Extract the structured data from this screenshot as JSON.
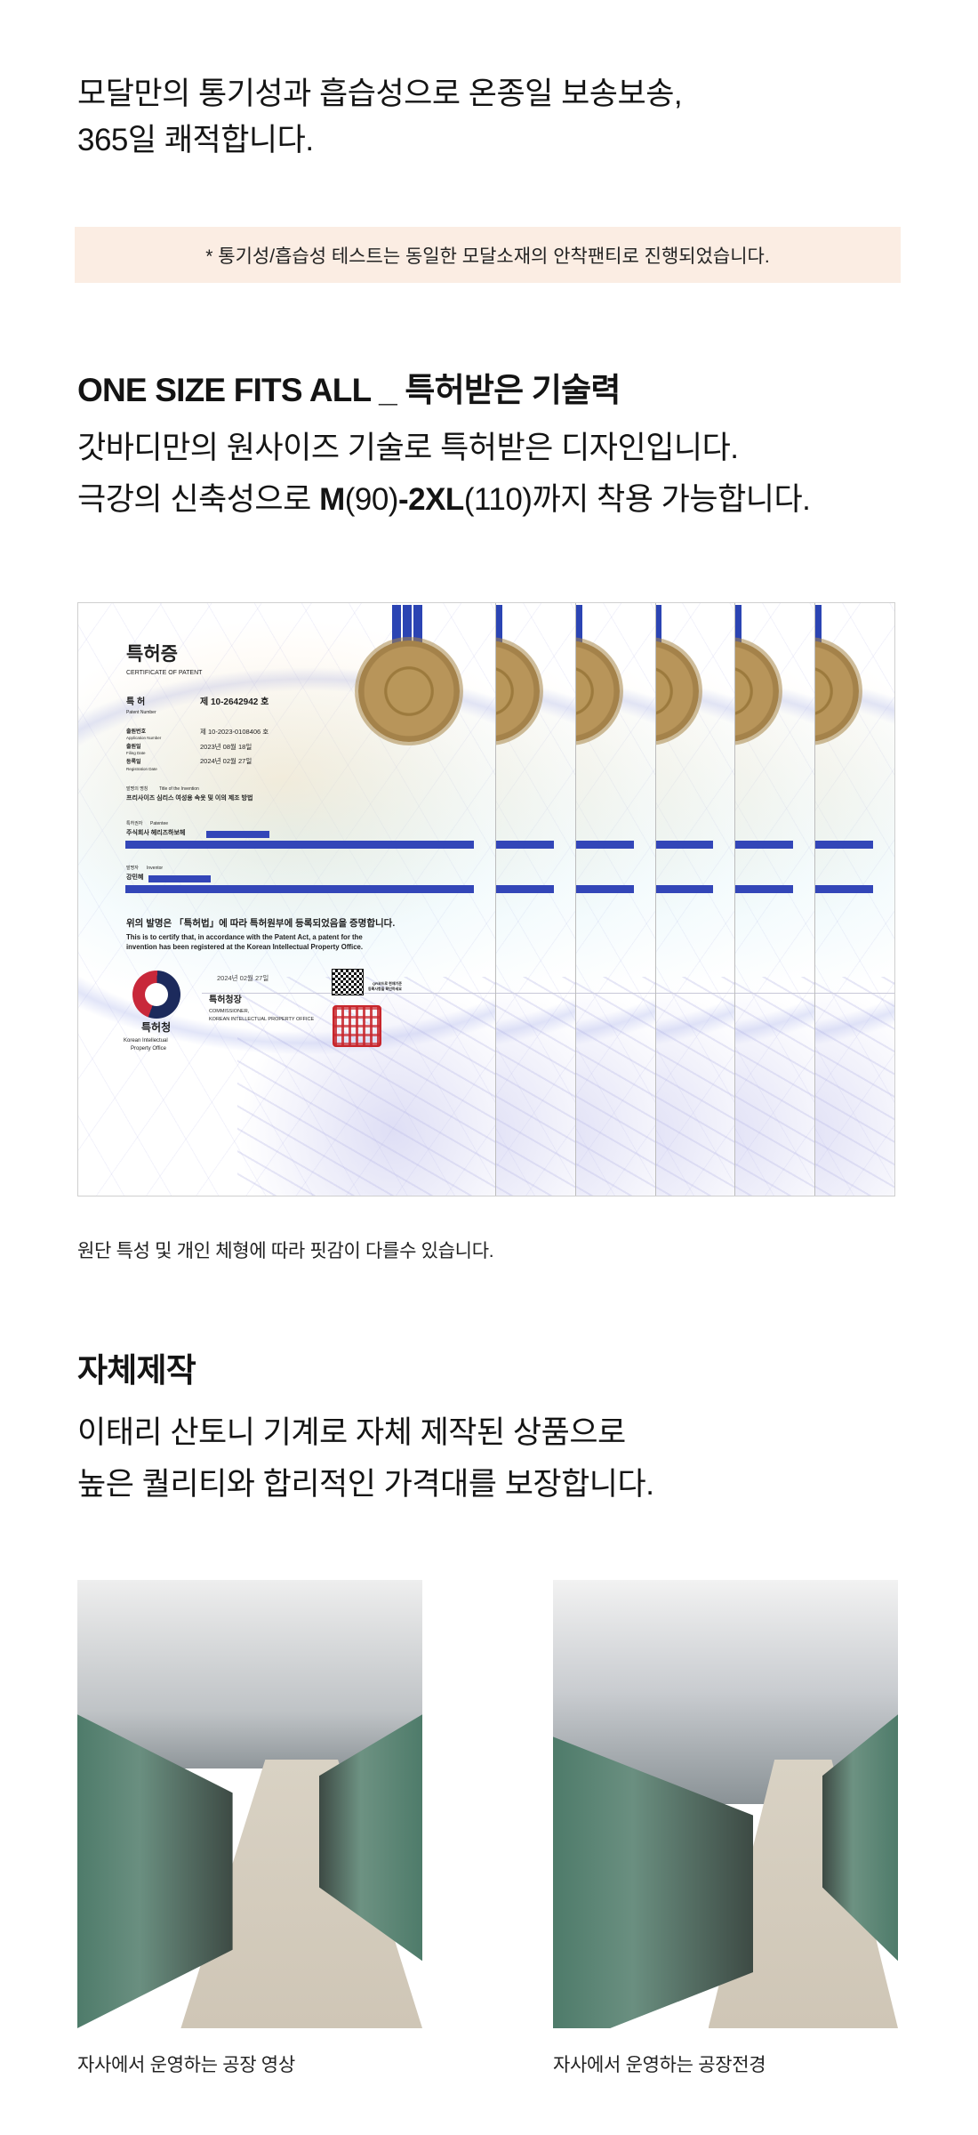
{
  "intro": {
    "line1": "모달만의 통기성과 흡습성으로 온종일 보송보송,",
    "line2": "365일 쾌적합니다."
  },
  "note": "* 통기성/흡습성 테스트는 동일한 모달소재의 안착팬티로 진행되었습니다.",
  "patent_section": {
    "heading": "ONE SIZE FITS ALL _ 특허받은 기술력",
    "line1": "갓바디만의 원사이즈 기술로 특허받은 디자인입니다.",
    "line2_pre": "극강의 신축성으로 ",
    "line2_bold1": "M",
    "line2_paren1": "(90)",
    "line2_bold2": "-2XL",
    "line2_paren2": "(110)",
    "line2_post": "까지 착용 가능합니다.",
    "certificate": {
      "title": "특허증",
      "title_en": "CERTIFICATE OF PATENT",
      "patent_label": "특 허",
      "patent_label_en": "Patent Number",
      "patent_number": "제 10-2642942 호",
      "app_label": "출원번호",
      "app_label_en": "Application Number",
      "app_number": "제 10-2023-0108406 호",
      "filing_label": "출원일",
      "filing_label_en": "Filing Date",
      "filing_date": "2023년 08월 18일",
      "reg_label": "등록일",
      "reg_label_en": "Registration Date",
      "reg_date": "2024년 02월 27일",
      "invention_label": "발명의 명칭",
      "invention_label_en": "Title of the Invention",
      "invention_title": "프리사이즈 심리스 여성용 속옷 및 이의 제조 방법",
      "patentee_label": "특허권자",
      "patentee_label_en": "Patentee",
      "patentee": "주식회사 헤리즈하보헤",
      "inventor_label": "발명자",
      "inventor_label_en": "Inventor",
      "inventor": "강민혜",
      "statement_ko": "위의 발명은 「특허법」에 따라 특허원부에 등록되었음을 증명합니다.",
      "statement_en1": "This is to certify that, in accordance with the Patent Act, a patent for the",
      "statement_en2": "invention has been registered at the Korean Intellectual Property Office.",
      "issue_date": "2024년 02월 27일",
      "qr_note1": "QR코드로 현재기준",
      "qr_note2": "등록사항을 확인하세요",
      "commissioner_ko": "특허청장",
      "commissioner_en1": "COMMISSIONER,",
      "commissioner_en2": "KOREAN INTELLECTUAL PROPERTY OFFICE",
      "office_ko": "특허청",
      "office_en1": "Korean Intellectual",
      "office_en2": "Property Office",
      "ribbon_color": "#2b44b3",
      "redaction_color": "#3346b8"
    },
    "caption": "원단 특성 및 개인 체형에 따라 핏감이 다를수 있습니다."
  },
  "factory_section": {
    "heading": "자체제작",
    "line1": "이태리 산토니 기계로 자체 제작된 상품으로",
    "line2": "높은 퀄리티와 합리적인 가격대를 보장합니다.",
    "photos": [
      {
        "caption": "자사에서 운영하는 공장 영상"
      },
      {
        "caption": "자사에서 운영하는 공장전경"
      }
    ]
  },
  "colors": {
    "note_bg": "#fbede3",
    "text": "#141414"
  }
}
